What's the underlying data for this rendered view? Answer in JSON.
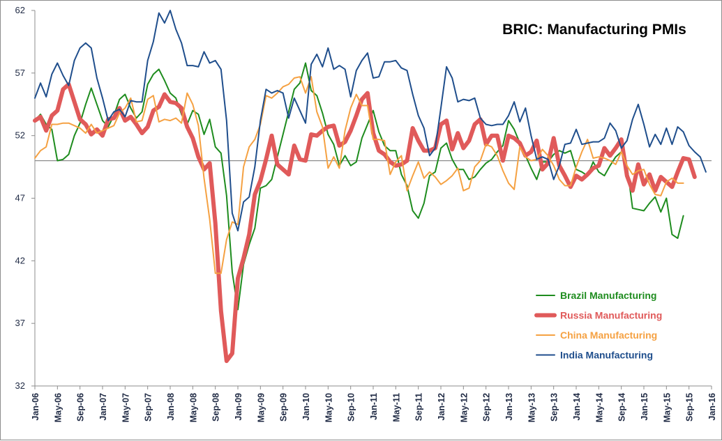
{
  "chart_data": {
    "type": "line",
    "title": "BRIC: Manufacturing PMIs",
    "xlabel": "",
    "ylabel": "",
    "ylim": [
      32,
      62
    ],
    "y_ticks": [
      "32",
      "37",
      "42",
      "47",
      "52",
      "57",
      "62"
    ],
    "reference_line": 50,
    "x_tick_labels": [
      "Jan-06",
      "May-06",
      "Sep-06",
      "Jan-07",
      "May-07",
      "Sep-07",
      "Jan-08",
      "May-08",
      "Sep-08",
      "Jan-09",
      "May-09",
      "Sep-09",
      "Jan-10",
      "May-10",
      "Sep-10",
      "Jan-11",
      "May-11",
      "Sep-11",
      "Jan-12",
      "May-12",
      "Sep-12",
      "Jan-13",
      "May-13",
      "Sep-13",
      "Jan-14",
      "May-14",
      "Sep-14",
      "Jan-15",
      "May-15",
      "Sep-15",
      "Jan-16"
    ],
    "x_start": "Jan-06",
    "legend_position": "bottom-right",
    "grid": false,
    "series": [
      {
        "name": "Brazil Manufacturing",
        "color": "#1e8c1e",
        "width": 2,
        "values": [
          53.2,
          53.7,
          52.9,
          52.5,
          50.0,
          50.1,
          50.5,
          52.0,
          53.0,
          54.5,
          55.8,
          54.5,
          53.2,
          52.7,
          53.6,
          54.9,
          55.3,
          54.2,
          53.4,
          53.9,
          56.1,
          56.9,
          57.3,
          56.4,
          55.4,
          55.0,
          53.7,
          52.9,
          54.0,
          53.7,
          52.1,
          53.3,
          51.1,
          50.6,
          47.2,
          41.1,
          38.1,
          41.7,
          43.3,
          44.6,
          47.8,
          48.0,
          48.5,
          50.3,
          52.1,
          53.9,
          55.7,
          56.2,
          57.8,
          55.6,
          55.2,
          53.8,
          52.1,
          51.3,
          49.6,
          50.4,
          49.6,
          49.9,
          51.8,
          52.9,
          54.0,
          52.3,
          51.2,
          50.8,
          50.8,
          48.9,
          48.0,
          46.0,
          45.4,
          46.6,
          48.8,
          49.1,
          51.0,
          51.4,
          50.1,
          49.3,
          49.3,
          48.5,
          48.7,
          49.3,
          49.8,
          50.1,
          50.7,
          51.2,
          53.2,
          52.5,
          51.4,
          50.4,
          49.4,
          48.5,
          49.9,
          49.9,
          50.5,
          50.8,
          50.6,
          50.8,
          49.3,
          49.1,
          48.8,
          49.9,
          49.1,
          48.8,
          49.6,
          50.3,
          50.7,
          49.6,
          46.2,
          46.1,
          46.0,
          46.6,
          47.1,
          45.9,
          47.0,
          44.1,
          43.8,
          45.6
        ]
      },
      {
        "name": "Russia Manufacturing",
        "color": "#e05a5a",
        "width": 6,
        "values": [
          53.2,
          53.5,
          52.4,
          53.6,
          54.0,
          55.7,
          56.1,
          54.7,
          53.3,
          52.9,
          52.1,
          52.5,
          52.0,
          53.3,
          53.4,
          54.2,
          53.2,
          53.5,
          52.9,
          52.2,
          52.7,
          54.0,
          54.3,
          55.3,
          54.7,
          54.6,
          54.2,
          52.7,
          51.8,
          50.3,
          49.3,
          49.8,
          45.0,
          38.0,
          34.0,
          34.6,
          40.6,
          42.2,
          44.1,
          47.3,
          48.4,
          50.1,
          52.0,
          49.7,
          49.3,
          48.9,
          51.2,
          50.1,
          50.0,
          52.1,
          52.0,
          52.4,
          52.7,
          52.8,
          51.2,
          51.5,
          52.4,
          53.6,
          54.9,
          55.4,
          52.2,
          50.8,
          50.5,
          49.9,
          49.6,
          49.7,
          50.0,
          52.6,
          51.6,
          50.8,
          50.8,
          51.0,
          52.9,
          53.2,
          50.9,
          52.2,
          51.0,
          51.6,
          52.9,
          53.3,
          51.3,
          52.0,
          52.0,
          50.0,
          52.0,
          51.8,
          51.4,
          50.4,
          50.7,
          51.6,
          49.3,
          49.8,
          51.8,
          49.6,
          48.8,
          47.9,
          48.8,
          48.5,
          48.9,
          49.4,
          49.6,
          51.0,
          50.4,
          51.0,
          51.7,
          48.8,
          47.6,
          49.7,
          48.1,
          48.9,
          47.6,
          48.7,
          48.3,
          47.9,
          49.1,
          50.2,
          50.1,
          48.7
        ]
      },
      {
        "name": "China Manufacturing",
        "color": "#f5a142",
        "width": 2,
        "values": [
          50.2,
          50.8,
          51.1,
          52.9,
          52.9,
          53.0,
          53.0,
          52.8,
          52.6,
          52.2,
          52.9,
          52.2,
          52.4,
          52.6,
          52.8,
          53.8,
          54.2,
          55.0,
          53.1,
          53.2,
          54.9,
          55.2,
          53.1,
          53.3,
          53.2,
          53.4,
          53.0,
          55.4,
          54.5,
          52.8,
          48.6,
          45.3,
          41.0,
          41.0,
          43.7,
          45.1,
          44.9,
          49.5,
          51.1,
          51.7,
          52.9,
          55.2,
          55.0,
          55.4,
          55.9,
          56.1,
          56.6,
          56.7,
          55.4,
          56.7,
          53.9,
          52.7,
          49.4,
          50.3,
          49.4,
          52.4,
          54.2,
          55.3,
          54.4,
          54.4,
          51.7,
          51.7,
          51.6,
          48.9,
          49.9,
          50.4,
          47.6,
          48.8,
          49.9,
          48.6,
          49.1,
          48.7,
          48.1,
          48.4,
          48.8,
          49.4,
          47.6,
          47.8,
          49.5,
          50.0,
          51.3,
          51.1,
          50.4,
          49.2,
          48.2,
          47.7,
          51.1,
          50.3,
          50.0,
          50.1,
          50.9,
          50.4,
          49.6,
          48.5,
          48.0,
          48.0,
          49.5,
          50.7,
          51.7,
          50.2,
          50.3,
          50.2,
          50.0,
          49.7,
          50.7,
          49.6,
          48.9,
          49.2,
          49.3,
          48.1,
          47.3,
          47.2,
          48.3,
          48.6,
          48.2,
          48.2
        ]
      },
      {
        "name": "India Manufacturing",
        "color": "#1f4e8c",
        "width": 2,
        "values": [
          55.0,
          56.2,
          55.1,
          56.9,
          57.8,
          56.8,
          56.0,
          58.0,
          59.0,
          59.4,
          59.0,
          56.6,
          55.0,
          53.2,
          53.9,
          54.1,
          53.5,
          54.8,
          54.7,
          54.7,
          58.0,
          59.5,
          61.8,
          61.0,
          62.0,
          60.5,
          59.4,
          57.6,
          57.6,
          57.5,
          58.7,
          57.8,
          58.0,
          57.3,
          53.2,
          45.8,
          44.4,
          46.7,
          47.1,
          49.5,
          53.2,
          55.7,
          55.4,
          55.6,
          55.4,
          53.4,
          55.0,
          54.0,
          53.0,
          57.7,
          58.5,
          57.5,
          59.0,
          57.3,
          57.6,
          57.3,
          55.1,
          57.2,
          58.0,
          58.6,
          56.6,
          56.7,
          57.9,
          57.9,
          58.0,
          57.4,
          57.2,
          55.3,
          53.6,
          52.6,
          50.4,
          51.0,
          54.2,
          57.5,
          56.6,
          54.7,
          54.9,
          54.8,
          55.0,
          53.4,
          52.9,
          52.8,
          52.9,
          52.9,
          53.6,
          54.7,
          53.1,
          54.2,
          52.0,
          50.1,
          50.3,
          50.1,
          48.5,
          49.6,
          51.3,
          51.4,
          52.5,
          51.3,
          51.4,
          51.5,
          51.5,
          51.8,
          53.0,
          52.4,
          51.0,
          51.6,
          53.3,
          54.5,
          52.9,
          51.1,
          52.1,
          51.3,
          52.6,
          51.3,
          52.7,
          52.3,
          51.2,
          50.7,
          50.3,
          49.1
        ]
      }
    ]
  }
}
